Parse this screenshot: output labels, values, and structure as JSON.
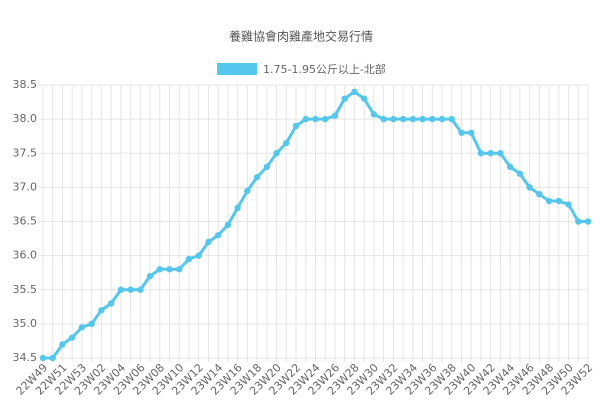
{
  "chart_data": {
    "type": "line",
    "title": "養雞協會肉雞產地交易行情",
    "categories": [
      "22W49",
      null,
      "22W51",
      null,
      "22W53",
      null,
      "23W02",
      null,
      "23W04",
      null,
      "23W06",
      null,
      "23W08",
      null,
      "23W10",
      null,
      "23W12",
      null,
      "23W14",
      null,
      "23W16",
      null,
      "23W18",
      null,
      "23W20",
      null,
      "23W22",
      null,
      "23W24",
      null,
      "23W26",
      null,
      "23W28",
      null,
      "23W30",
      null,
      "23W32",
      null,
      "23W34",
      null,
      "23W36",
      null,
      "23W38",
      null,
      "23W40",
      null,
      "23W42",
      null,
      "23W44",
      null,
      "23W46",
      null,
      "23W48",
      null,
      "23W50",
      null,
      "23W52"
    ],
    "series": [
      {
        "name": "1.75-1.95公斤以上-北部",
        "color": "#55c6ec",
        "values": [
          34.5,
          34.5,
          34.7,
          34.8,
          34.95,
          35.0,
          35.2,
          35.3,
          35.5,
          35.5,
          35.5,
          35.7,
          35.8,
          35.8,
          35.8,
          35.95,
          36.0,
          36.2,
          36.3,
          36.45,
          36.7,
          36.95,
          37.15,
          37.3,
          37.5,
          37.65,
          37.9,
          38.0,
          38.0,
          38.0,
          38.05,
          38.3,
          38.4,
          38.3,
          38.07,
          38.0,
          38.0,
          38.0,
          38.0,
          38.0,
          38.0,
          38.0,
          38.0,
          37.8,
          37.8,
          37.5,
          37.5,
          37.5,
          37.3,
          37.2,
          37.0,
          36.9,
          36.8,
          36.8,
          36.75,
          36.5,
          36.5
        ]
      }
    ],
    "ylim": [
      34.5,
      38.5
    ],
    "yticks": [
      34.5,
      {
        "value": 35,
        "label": "35.0"
      },
      35.5,
      {
        "value": 36,
        "label": "36.0"
      },
      36.5,
      {
        "value": 37,
        "label": "37.0"
      },
      37.5,
      {
        "value": 38,
        "label": "38.0"
      },
      38.5
    ],
    "grid": true,
    "legend": "top"
  }
}
